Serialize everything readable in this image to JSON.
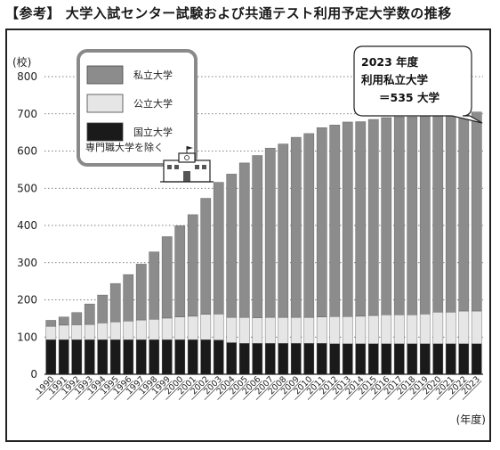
{
  "heading": "【参考】 大学入試センター試験および共通テスト利用予定大学数の推移",
  "chart_data": {
    "type": "bar",
    "stacked": true,
    "ylabel": "(校)",
    "xlabel": "(年度)",
    "ylim": [
      0,
      800
    ],
    "yticks": [
      0,
      100,
      200,
      300,
      400,
      500,
      600,
      700,
      800
    ],
    "grid": "dotted horizontal",
    "categories": [
      "1990",
      "1991",
      "1992",
      "1993",
      "1994",
      "1995",
      "1996",
      "1997",
      "1998",
      "1999",
      "2000",
      "2001",
      "2002",
      "2003",
      "2004",
      "2005",
      "2006",
      "2007",
      "2008",
      "2009",
      "2010",
      "2011",
      "2012",
      "2013",
      "2014",
      "2015",
      "2016",
      "2017",
      "2018",
      "2019",
      "2020",
      "2021",
      "2022",
      "2023"
    ],
    "series": [
      {
        "name": "国立大学",
        "color": "#1a1a1a",
        "values": [
          93,
          93,
          93,
          93,
          93,
          93,
          93,
          93,
          93,
          93,
          93,
          93,
          93,
          92,
          85,
          83,
          83,
          83,
          83,
          83,
          83,
          83,
          82,
          82,
          82,
          82,
          82,
          82,
          82,
          82,
          82,
          82,
          82,
          82
        ]
      },
      {
        "name": "公立大学",
        "color": "#e6e6e6",
        "values": [
          36,
          39,
          40,
          41,
          45,
          48,
          50,
          53,
          55,
          58,
          61,
          63,
          68,
          70,
          68,
          70,
          69,
          70,
          70,
          70,
          70,
          71,
          73,
          73,
          74,
          76,
          78,
          78,
          78,
          80,
          85,
          85,
          88,
          88
        ]
      },
      {
        "name": "私立大学",
        "color": "#8c8c8c",
        "values": [
          16,
          22,
          33,
          55,
          75,
          103,
          125,
          150,
          181,
          219,
          245,
          273,
          312,
          354,
          385,
          415,
          436,
          455,
          466,
          484,
          494,
          509,
          515,
          523,
          523,
          527,
          530,
          532,
          532,
          532,
          529,
          529,
          532,
          535
        ]
      }
    ],
    "legend": {
      "placement": "top-left",
      "note": "専門職大学を除く"
    },
    "annotation": {
      "lines": [
        "2023 年度",
        "利用私立大学",
        "＝535 大学"
      ],
      "placement": "top-right"
    }
  }
}
